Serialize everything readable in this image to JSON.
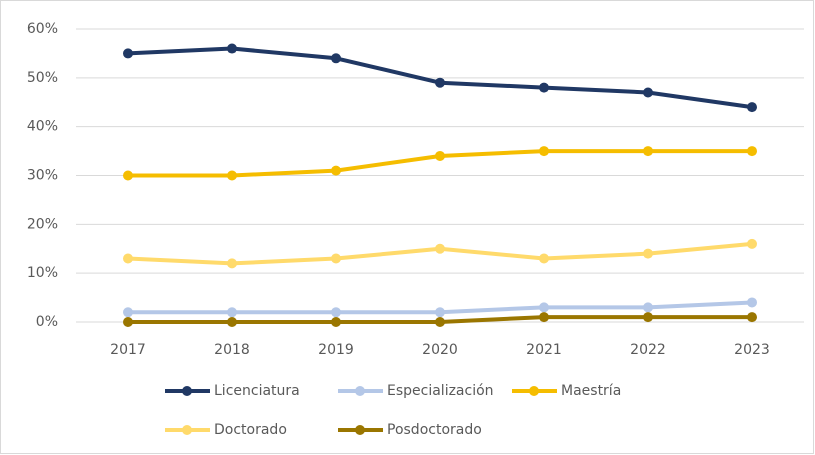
{
  "chart_data": {
    "type": "line",
    "categories": [
      "2017",
      "2018",
      "2019",
      "2020",
      "2021",
      "2022",
      "2023"
    ],
    "series": [
      {
        "name": "Licenciatura",
        "color": "#203864",
        "values": [
          55,
          56,
          54,
          49,
          48,
          47,
          44
        ]
      },
      {
        "name": "Especialización",
        "color": "#b4c7e7",
        "values": [
          2,
          2,
          2,
          2,
          3,
          3,
          4
        ]
      },
      {
        "name": "Maestría",
        "color": "#f5bd00",
        "values": [
          30,
          30,
          31,
          34,
          35,
          35,
          35
        ]
      },
      {
        "name": "Doctorado",
        "color": "#ffda6b",
        "values": [
          13,
          12,
          13,
          15,
          13,
          14,
          16
        ]
      },
      {
        "name": "Posdoctorado",
        "color": "#9a7600",
        "values": [
          0,
          0,
          0,
          0,
          1,
          1,
          1
        ]
      }
    ],
    "ylim": [
      0,
      60
    ],
    "yticks": [
      {
        "value": 0,
        "label": "0%"
      },
      {
        "value": 10,
        "label": "10%"
      },
      {
        "value": 20,
        "label": "20%"
      },
      {
        "value": 30,
        "label": "30%"
      },
      {
        "value": 40,
        "label": "40%"
      },
      {
        "value": 50,
        "label": "50%"
      },
      {
        "value": 60,
        "label": "60%"
      }
    ],
    "grid": true,
    "legend": "bottom"
  }
}
